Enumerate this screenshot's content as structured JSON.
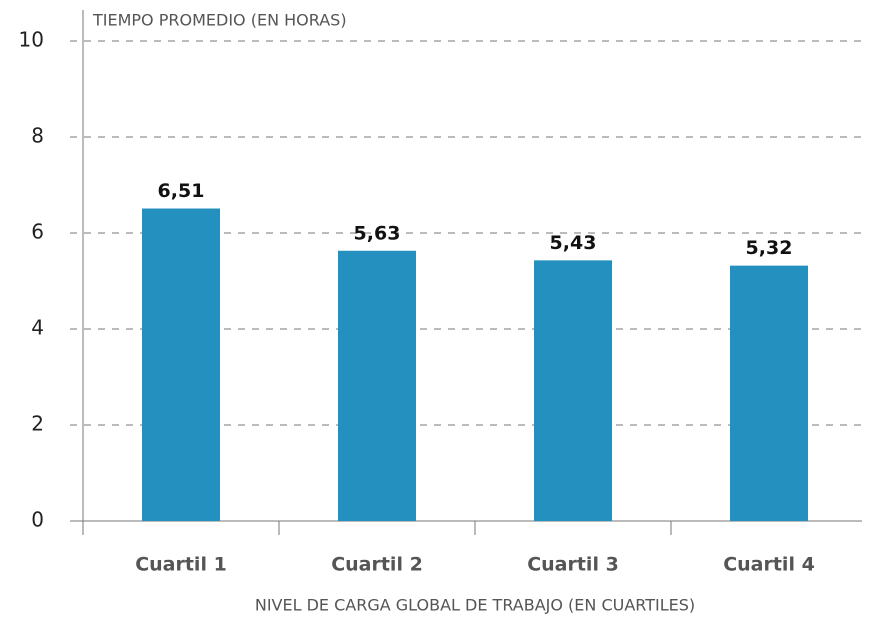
{
  "chart_data": {
    "type": "bar",
    "title": "TIEMPO PROMEDIO (EN HORAS)",
    "x_label": "NIVEL DE CARGA GLOBAL DE TRABAJO (EN CUARTILES)",
    "categories": [
      "Cuartil 1",
      "Cuartil 2",
      "Cuartil 3",
      "Cuartil 4"
    ],
    "values": [
      6.51,
      5.63,
      5.43,
      5.32
    ],
    "value_labels": [
      "6,51",
      "5,63",
      "5,43",
      "5,32"
    ],
    "color": "#2490c0",
    "ylim": [
      0,
      10
    ],
    "yticks": [
      0,
      2,
      4,
      6,
      8,
      10
    ],
    "grid": true
  }
}
